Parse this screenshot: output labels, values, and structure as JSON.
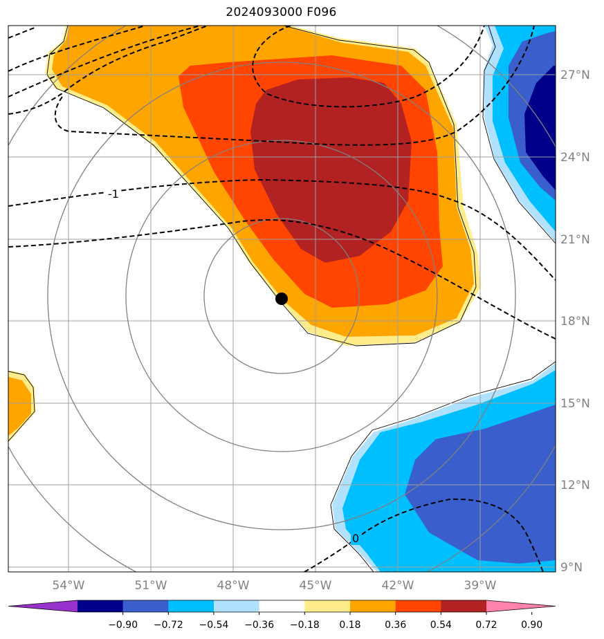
{
  "title": "2024093000 F096",
  "lon_labels": [
    "54°W",
    "51°W",
    "48°W",
    "45°W",
    "42°W",
    "39°W"
  ],
  "lat_labels": [
    "27°N",
    "24°N",
    "21°N",
    "18°N",
    "15°N",
    "12°N",
    "9°N"
  ],
  "contour_labels": [
    "-1",
    "0"
  ],
  "colorbar": {
    "ticks": [
      "−0.90",
      "−0.72",
      "−0.54",
      "−0.36",
      "−0.18",
      "0.18",
      "0.36",
      "0.54",
      "0.72",
      "0.90"
    ],
    "colors": [
      "#9932cc",
      "#00008b",
      "#3a5fcd",
      "#00bfff",
      "#b0e2ff",
      "#ffffff",
      "#ffec8b",
      "#ffa500",
      "#ff4500",
      "#b22222",
      "#ff82ab"
    ]
  },
  "fill_colors": {
    "light_yellow": "#ffec8b",
    "orange": "#ffa500",
    "orange_red": "#ff4500",
    "firebrick": "#b22222",
    "light_blue": "#b0e2ff",
    "deep_sky_blue": "#00bfff",
    "royal_blue": "#3a5fcd",
    "navy": "#00008b"
  },
  "storm_marker": "center-dot"
}
